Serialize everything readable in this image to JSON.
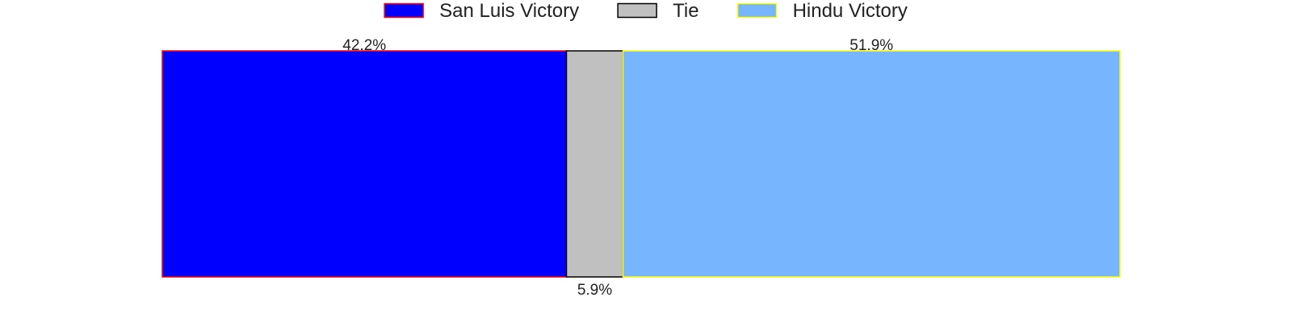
{
  "chart_data": {
    "type": "bar",
    "orientation": "horizontal",
    "stacked": true,
    "title": "",
    "xlabel": "",
    "ylabel": "",
    "xlim": [
      0,
      100
    ],
    "grid": false,
    "legend_position": "top-center",
    "series": [
      {
        "name": "San Luis Victory",
        "value": 42.2,
        "label": "42.2%",
        "fill": "#0000ff",
        "edge": "#ff0000"
      },
      {
        "name": "Tie",
        "value": 5.9,
        "label": "5.9%",
        "fill": "#c0c0c0",
        "edge": "#000000"
      },
      {
        "name": "Hindu Victory",
        "value": 51.9,
        "label": "51.9%",
        "fill": "#77b5fe",
        "edge": "#ffff00"
      }
    ]
  }
}
